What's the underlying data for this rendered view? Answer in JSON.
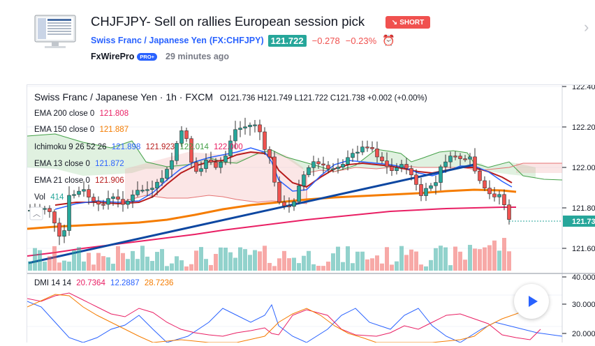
{
  "idea": {
    "title": "CHJFJPY- Sell on rallies European session pick",
    "badge": "SHORT",
    "instrument_name": "Swiss Franc / Japanese Yen",
    "symbol": "(FX:CHFJPY)",
    "price": "121.722",
    "change": "−0.278",
    "change_pct": "−0.23%",
    "author": "FxWirePro",
    "author_badge": "PRO+",
    "time_ago": "29 minutes ago"
  },
  "chart": {
    "header": "Swiss Franc / Japanese Yen · 1h · FXCM",
    "ohlc": "O121.736  H121.749  L121.722  C121.738  +0.002 (+0.00%)",
    "indicators": [
      {
        "label": "EMA 200 close 0",
        "value": "121.808",
        "color": "#e91e63"
      },
      {
        "label": "EMA 150 close 0",
        "value": "121.887",
        "color": "#f57c00"
      },
      {
        "label": "Ichimoku 9 26 52 26",
        "values": [
          "121.898",
          "121.923",
          "122.014",
          "122.000"
        ],
        "colors": [
          "#2962ff",
          "#b71c1c",
          "#43a047",
          "#e91e63"
        ]
      },
      {
        "label": "EMA 13 close 0",
        "value": "121.872",
        "color": "#2962ff"
      },
      {
        "label": "EMA 21 close 0",
        "value": "121.906",
        "color": "#b71c1c"
      }
    ],
    "vol_label": "Vol",
    "vol_value": "414",
    "price_axis": [
      "122.40",
      "122.20",
      "122.00",
      "121.80",
      "121.60"
    ],
    "last_price": "121.73",
    "dmi_label": "DMI 14 14",
    "dmi_values": [
      "20.7364",
      "12.2887",
      "28.7236"
    ],
    "dmi_colors": [
      "#e91e63",
      "#2962ff",
      "#f57c00"
    ],
    "dmi_axis": [
      "40.000",
      "30.000",
      "20.000"
    ],
    "colors": {
      "up": "#26a69a",
      "down": "#ef5350",
      "trend": "#0d47a1"
    }
  }
}
